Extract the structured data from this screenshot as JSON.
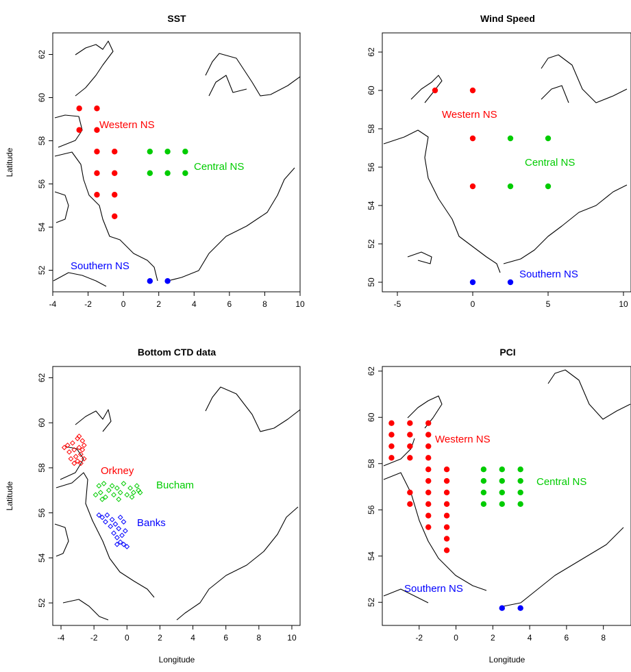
{
  "colors": {
    "western": "#ff0000",
    "central": "#00cc00",
    "southern": "#0000ff"
  },
  "axis_labels": {
    "x": "Longitude",
    "y": "Latitude"
  },
  "chart_data": [
    {
      "type": "scatter",
      "title": "SST",
      "xlim": [
        -4,
        10
      ],
      "ylim": [
        51,
        63
      ],
      "xticks": [
        "-4",
        "-2",
        "0",
        "2",
        "4",
        "6",
        "8",
        "10"
      ],
      "yticks": [
        "52",
        "54",
        "56",
        "58",
        "60",
        "62"
      ],
      "xlabel": "",
      "ylabel": "Latitude",
      "series": [
        {
          "name": "Western NS",
          "color": "#ff0000",
          "marker": "filled-circle",
          "points": [
            [
              -2.5,
              59.5
            ],
            [
              -1.5,
              59.5
            ],
            [
              -2.5,
              58.5
            ],
            [
              -1.5,
              58.5
            ],
            [
              -1.5,
              57.5
            ],
            [
              -0.5,
              57.5
            ],
            [
              -1.5,
              56.5
            ],
            [
              -0.5,
              56.5
            ],
            [
              -1.5,
              55.5
            ],
            [
              -0.5,
              55.5
            ],
            [
              -0.5,
              54.5
            ]
          ]
        },
        {
          "name": "Central NS",
          "color": "#00cc00",
          "marker": "filled-circle",
          "points": [
            [
              1.5,
              57.5
            ],
            [
              2.5,
              57.5
            ],
            [
              3.5,
              57.5
            ],
            [
              1.5,
              56.5
            ],
            [
              2.5,
              56.5
            ],
            [
              3.5,
              56.5
            ]
          ]
        },
        {
          "name": "Southern NS",
          "color": "#0000ff",
          "marker": "filled-circle",
          "points": [
            [
              1.5,
              51.5
            ],
            [
              2.5,
              51.5
            ]
          ]
        }
      ]
    },
    {
      "type": "scatter",
      "title": "Wind Speed",
      "xlim": [
        -6,
        10.5
      ],
      "ylim": [
        49.5,
        63
      ],
      "xticks": [
        "-5",
        "0",
        "5",
        "10"
      ],
      "yticks": [
        "50",
        "52",
        "54",
        "56",
        "58",
        "60",
        "62"
      ],
      "xlabel": "",
      "ylabel": "",
      "series": [
        {
          "name": "Western NS",
          "color": "#ff0000",
          "marker": "filled-circle",
          "points": [
            [
              -2.5,
              60
            ],
            [
              0,
              60
            ],
            [
              0,
              57.5
            ],
            [
              0,
              55
            ]
          ]
        },
        {
          "name": "Central NS",
          "color": "#00cc00",
          "marker": "filled-circle",
          "points": [
            [
              2.5,
              57.5
            ],
            [
              5,
              57.5
            ],
            [
              2.5,
              55
            ],
            [
              5,
              55
            ]
          ]
        },
        {
          "name": "Southern NS",
          "color": "#0000ff",
          "marker": "filled-circle",
          "points": [
            [
              0,
              50
            ],
            [
              2.5,
              50
            ]
          ]
        }
      ]
    },
    {
      "type": "scatter",
      "title": "Bottom CTD data",
      "xlim": [
        -4.5,
        10.5
      ],
      "ylim": [
        51,
        62.5
      ],
      "xticks": [
        "-4",
        "-2",
        "0",
        "2",
        "4",
        "6",
        "8",
        "10"
      ],
      "yticks": [
        "52",
        "54",
        "56",
        "58",
        "60",
        "62"
      ],
      "xlabel": "Longitude",
      "ylabel": "Latitude",
      "series": [
        {
          "name": "Orkney",
          "color": "#ff0000",
          "marker": "open-diamond",
          "region": {
            "lon": [
              -4.0,
              -2.5
            ],
            "lat": [
              58.0,
              59.5
            ]
          },
          "points": [
            [
              -3.8,
              58.9
            ],
            [
              -3.6,
              59.0
            ],
            [
              -3.5,
              58.7
            ],
            [
              -3.3,
              59.1
            ],
            [
              -3.2,
              58.8
            ],
            [
              -3.1,
              58.5
            ],
            [
              -3.0,
              59.3
            ],
            [
              -3.0,
              58.3
            ],
            [
              -2.9,
              58.9
            ],
            [
              -2.8,
              58.6
            ],
            [
              -2.8,
              58.2
            ],
            [
              -2.7,
              59.2
            ],
            [
              -2.7,
              58.8
            ],
            [
              -2.6,
              58.4
            ],
            [
              -2.6,
              59.0
            ],
            [
              -3.4,
              58.4
            ],
            [
              -3.2,
              58.2
            ],
            [
              -2.9,
              59.4
            ]
          ]
        },
        {
          "name": "Bucham",
          "color": "#00cc00",
          "marker": "open-diamond",
          "region": {
            "lon": [
              -2.0,
              1.0
            ],
            "lat": [
              56.5,
              57.5
            ]
          },
          "points": [
            [
              -1.9,
              56.8
            ],
            [
              -1.7,
              57.2
            ],
            [
              -1.6,
              56.9
            ],
            [
              -1.4,
              57.3
            ],
            [
              -1.3,
              56.7
            ],
            [
              -1.1,
              57.0
            ],
            [
              -0.9,
              57.2
            ],
            [
              -0.8,
              56.8
            ],
            [
              -0.6,
              57.1
            ],
            [
              -0.4,
              56.9
            ],
            [
              -0.2,
              57.3
            ],
            [
              0.0,
              56.8
            ],
            [
              0.2,
              57.1
            ],
            [
              0.4,
              56.9
            ],
            [
              0.6,
              57.2
            ],
            [
              0.8,
              56.9
            ],
            [
              0.7,
              57.0
            ],
            [
              -1.5,
              56.6
            ],
            [
              -0.5,
              56.6
            ],
            [
              0.3,
              56.7
            ]
          ]
        },
        {
          "name": "Banks",
          "color": "#0000ff",
          "marker": "open-diamond",
          "region": {
            "lon": [
              -1.8,
              0.0
            ],
            "lat": [
              54.4,
              56.0
            ]
          },
          "points": [
            [
              -1.7,
              55.9
            ],
            [
              -1.5,
              55.8
            ],
            [
              -1.3,
              55.6
            ],
            [
              -1.2,
              55.9
            ],
            [
              -1.0,
              55.4
            ],
            [
              -0.9,
              55.7
            ],
            [
              -0.8,
              55.1
            ],
            [
              -0.7,
              55.5
            ],
            [
              -0.6,
              54.9
            ],
            [
              -0.5,
              55.3
            ],
            [
              -0.4,
              54.7
            ],
            [
              -0.3,
              55.0
            ],
            [
              -0.2,
              54.6
            ],
            [
              -0.1,
              55.2
            ],
            [
              0.0,
              54.5
            ],
            [
              -0.4,
              55.8
            ],
            [
              -0.2,
              55.6
            ],
            [
              -0.6,
              54.6
            ]
          ]
        }
      ]
    },
    {
      "type": "scatter",
      "title": "PCI",
      "xlim": [
        -4,
        9.5
      ],
      "ylim": [
        51,
        62.2
      ],
      "xticks": [
        "-2",
        "0",
        "2",
        "4",
        "6",
        "8"
      ],
      "yticks": [
        "52",
        "54",
        "56",
        "58",
        "60",
        "62"
      ],
      "xlabel": "Longitude",
      "ylabel": "",
      "series": [
        {
          "name": "Western NS",
          "color": "#ff0000",
          "marker": "filled-circle",
          "points": [
            [
              -3.5,
              59.75
            ],
            [
              -3.5,
              59.25
            ],
            [
              -3.5,
              58.75
            ],
            [
              -3.5,
              58.25
            ],
            [
              -2.5,
              59.75
            ],
            [
              -2.5,
              59.25
            ],
            [
              -2.5,
              58.75
            ],
            [
              -2.5,
              58.25
            ],
            [
              -2.5,
              56.75
            ],
            [
              -2.5,
              56.25
            ],
            [
              -1.5,
              59.75
            ],
            [
              -1.5,
              59.25
            ],
            [
              -1.5,
              58.75
            ],
            [
              -1.5,
              58.25
            ],
            [
              -1.5,
              57.75
            ],
            [
              -1.5,
              57.25
            ],
            [
              -1.5,
              56.75
            ],
            [
              -1.5,
              56.25
            ],
            [
              -1.5,
              55.75
            ],
            [
              -1.5,
              55.25
            ],
            [
              -0.5,
              57.75
            ],
            [
              -0.5,
              57.25
            ],
            [
              -0.5,
              56.75
            ],
            [
              -0.5,
              56.25
            ],
            [
              -0.5,
              55.75
            ],
            [
              -0.5,
              55.25
            ],
            [
              -0.5,
              54.75
            ],
            [
              -0.5,
              54.25
            ]
          ]
        },
        {
          "name": "Central NS",
          "color": "#00cc00",
          "marker": "filled-circle",
          "points": [
            [
              1.5,
              57.75
            ],
            [
              2.5,
              57.75
            ],
            [
              3.5,
              57.75
            ],
            [
              1.5,
              57.25
            ],
            [
              2.5,
              57.25
            ],
            [
              3.5,
              57.25
            ],
            [
              1.5,
              56.75
            ],
            [
              2.5,
              56.75
            ],
            [
              3.5,
              56.75
            ],
            [
              1.5,
              56.25
            ],
            [
              2.5,
              56.25
            ],
            [
              3.5,
              56.25
            ]
          ]
        },
        {
          "name": "Southern NS",
          "color": "#0000ff",
          "marker": "filled-circle",
          "points": [
            [
              2.5,
              51.75
            ],
            [
              3.5,
              51.75
            ]
          ]
        }
      ]
    }
  ]
}
